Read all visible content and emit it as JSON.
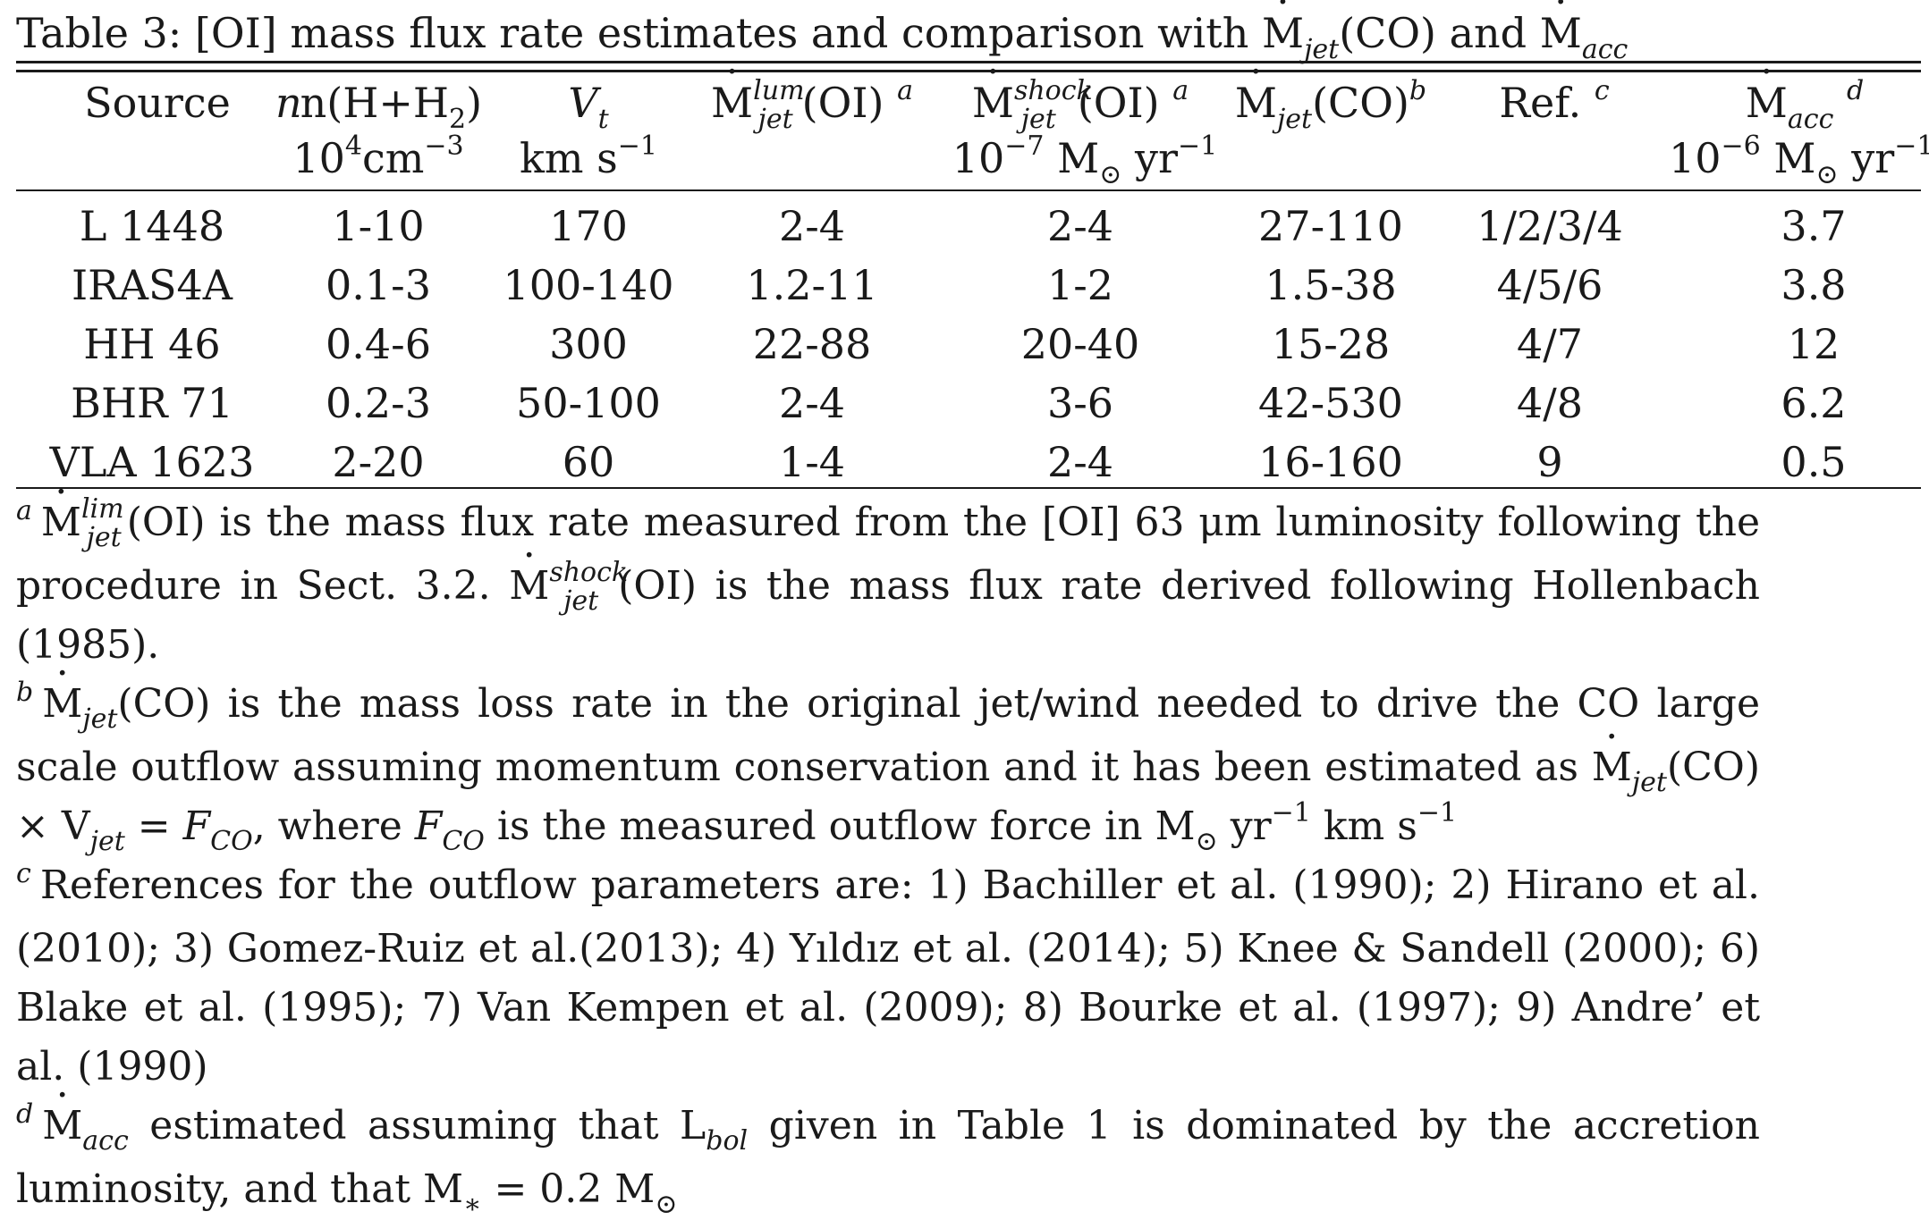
{
  "caption": "Table 3: [OI]  mass flux rate estimates and comparison with Ṁjet(CO) and Ṁacc",
  "caption_parts": {
    "prefix": "Table 3: [OI]  mass flux rate estimates and comparison with ",
    "m1": "M",
    "m1_sub": "jet",
    "m1_tail": "(CO) and ",
    "m2": "M",
    "m2_sub": "acc"
  },
  "headers": {
    "source": "Source",
    "n_line1": "n(H+H",
    "n_sub": "2",
    "n_tail": ")",
    "n_unit": "10",
    "n_unit_sup": "4",
    "n_unit_tail": "cm",
    "n_unit_exp": "−3",
    "vt": "V",
    "vt_sub": "t",
    "vt_unit": "km s",
    "vt_unit_exp": "−1",
    "mlum": "M",
    "mlum_sup": "lum",
    "mlum_sub": "jet",
    "mlum_tail": "(OI)",
    "mlum_note": "a",
    "mshock": "M",
    "mshock_sup": "shock",
    "mshock_sub": "jet",
    "mshock_tail": "(OI)",
    "mshock_note": "a",
    "mjet": "M",
    "mjet_sub": "jet",
    "mjet_tail": "(CO)",
    "mjet_note": "b",
    "ref": "Ref.",
    "ref_note": "c",
    "macc": "M",
    "macc_sub": "acc",
    "macc_note": "d",
    "mid_unit": "10",
    "mid_unit_exp": "−7",
    "mid_unit_tail": " M",
    "mid_unit_sun": "⊙",
    "mid_unit_yr": " yr",
    "mid_unit_yr_exp": "−1",
    "acc_unit": "10",
    "acc_unit_exp": "−6",
    "acc_unit_tail": " M",
    "acc_unit_sun": "⊙",
    "acc_unit_yr": " yr",
    "acc_unit_yr_exp": "−1"
  },
  "rows": [
    {
      "source": "L 1448",
      "n": "1-10",
      "vt": "170",
      "mlum": "2-4",
      "mshock": "2-4",
      "mjet": "27-110",
      "ref": "1/2/3/4",
      "macc": "3.7"
    },
    {
      "source": "IRAS4A",
      "n": "0.1-3",
      "vt": "100-140",
      "mlum": "1.2-11",
      "mshock": "1-2",
      "mjet": "1.5-38",
      "ref": "4/5/6",
      "macc": "3.8"
    },
    {
      "source": "HH 46",
      "n": "0.4-6",
      "vt": "300",
      "mlum": "22-88",
      "mshock": "20-40",
      "mjet": "15-28",
      "ref": "4/7",
      "macc": "12"
    },
    {
      "source": "BHR 71",
      "n": "0.2-3",
      "vt": "50-100",
      "mlum": "2-4",
      "mshock": "3-6",
      "mjet": "42-530",
      "ref": "4/8",
      "macc": "6.2"
    },
    {
      "source": "VLA 1623",
      "n": "2-20",
      "vt": "60",
      "mlum": "1-4",
      "mshock": "2-4",
      "mjet": "16-160",
      "ref": "9",
      "macc": "0.5"
    }
  ],
  "notes": {
    "a_mark": "a",
    "a_m1": "M",
    "a_m1_sup": "lim",
    "a_m1_sub": "jet",
    "a_text1": "(OI) is the mass flux rate measured from the [OI] 63 μm luminosity following the procedure in Sect. 3.2. ",
    "a_m2": "M",
    "a_m2_sup": "shock",
    "a_m2_sub": "jet",
    "a_text2": "(OI) is the mass flux rate derived following Hollenbach (1985).",
    "b_mark": "b",
    "b_m1": "M",
    "b_m1_sub": "jet",
    "b_text1": "(CO) is the mass loss rate in the original jet/wind needed to drive the CO large scale outflow assuming momentum conservation and it has been estimated as ",
    "b_m2": "M",
    "b_m2_sub": "jet",
    "b_text2": "(CO) × V",
    "b_v_sub": "jet",
    "b_text3": " = ",
    "b_f1": "F",
    "b_f1_sub": "CO",
    "b_text4": ", where ",
    "b_f2": "F",
    "b_f2_sub": "CO",
    "b_text5": " is the measured outflow force in M",
    "b_sun": "⊙",
    "b_yr": " yr",
    "b_yr_exp": "−1",
    "b_km": " km s",
    "b_km_exp": "−1",
    "c_mark": "c",
    "c_text": "References for the outflow parameters are: 1) Bachiller et al. (1990); 2) Hirano et al. (2010); 3) Gomez-Ruiz et al.(2013); 4) Yıldız et al. (2014); 5) Knee & Sandell (2000); 6) Blake et al. (1995); 7) Van Kempen et al. (2009); 8) Bourke et al. (1997); 9) Andre’ et al. (1990)",
    "d_mark": "d",
    "d_m": "M",
    "d_m_sub": "acc",
    "d_text1": " estimated assuming that L",
    "d_l_sub": "bol",
    "d_text2": " given in Table 1 is dominated by the accretion luminosity, and that M",
    "d_star_sub": "∗",
    "d_text3": " = 0.2 M",
    "d_sun": "⊙"
  }
}
